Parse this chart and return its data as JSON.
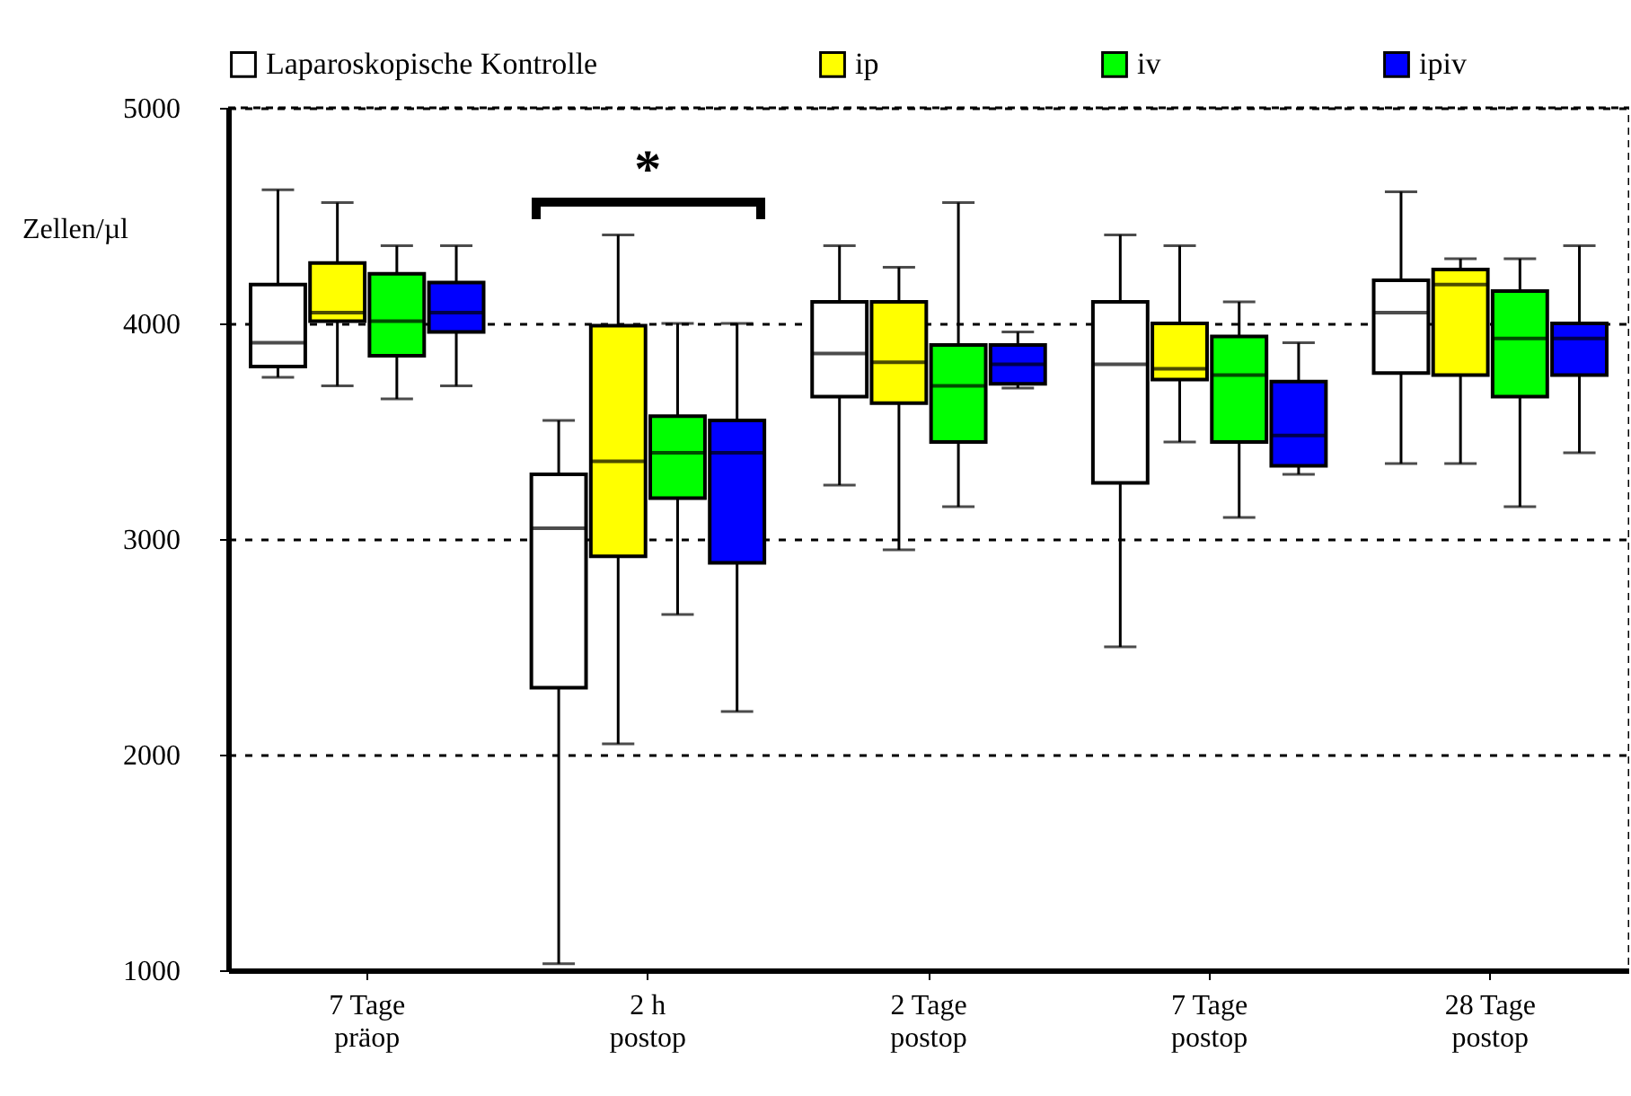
{
  "chart_data": {
    "type": "box",
    "ylabel": "Zellen/µl",
    "categories": [
      "7 Tage\npräop",
      "2 h\npostop",
      "2 Tage\npostop",
      "7 Tage\npostop",
      "28 Tage\npostop"
    ],
    "ylim": [
      1000,
      5000
    ],
    "yticks": [
      1000,
      2000,
      3000,
      4000,
      5000
    ],
    "grid": "y",
    "legend": "top",
    "annotations": [
      "*"
    ],
    "series": [
      {
        "name": "Laparoskopische Kontrolle",
        "color": "#ffffff",
        "boxes": [
          {
            "low": 3750,
            "q1": 3800,
            "median": 3910,
            "q3": 4180,
            "high": 4620
          },
          {
            "low": 1030,
            "q1": 2310,
            "median": 3050,
            "q3": 3300,
            "high": 3550
          },
          {
            "low": 3250,
            "q1": 3660,
            "median": 3860,
            "q3": 4100,
            "high": 4360
          },
          {
            "low": 2500,
            "q1": 3260,
            "median": 3810,
            "q3": 4100,
            "high": 4410
          },
          {
            "low": 3350,
            "q1": 3770,
            "median": 4050,
            "q3": 4200,
            "high": 4610
          }
        ]
      },
      {
        "name": "ip",
        "color": "#ffff00",
        "boxes": [
          {
            "low": 3710,
            "q1": 4010,
            "median": 4050,
            "q3": 4280,
            "high": 4560
          },
          {
            "low": 2050,
            "q1": 2920,
            "median": 3360,
            "q3": 3990,
            "high": 4410
          },
          {
            "low": 2950,
            "q1": 3630,
            "median": 3820,
            "q3": 4100,
            "high": 4260
          },
          {
            "low": 3450,
            "q1": 3740,
            "median": 3790,
            "q3": 4000,
            "high": 4360
          },
          {
            "low": 3350,
            "q1": 3760,
            "median": 4180,
            "q3": 4250,
            "high": 4300
          }
        ]
      },
      {
        "name": "iv",
        "color": "#00ff00",
        "boxes": [
          {
            "low": 3650,
            "q1": 3850,
            "median": 4010,
            "q3": 4230,
            "high": 4360
          },
          {
            "low": 2650,
            "q1": 3190,
            "median": 3400,
            "q3": 3570,
            "high": 4000
          },
          {
            "low": 3150,
            "q1": 3450,
            "median": 3710,
            "q3": 3900,
            "high": 4560
          },
          {
            "low": 3100,
            "q1": 3450,
            "median": 3760,
            "q3": 3940,
            "high": 4100
          },
          {
            "low": 3150,
            "q1": 3660,
            "median": 3930,
            "q3": 4150,
            "high": 4300
          }
        ]
      },
      {
        "name": "ipiv",
        "color": "#0000ff",
        "boxes": [
          {
            "low": 3710,
            "q1": 3960,
            "median": 4050,
            "q3": 4190,
            "high": 4360
          },
          {
            "low": 2200,
            "q1": 2890,
            "median": 3400,
            "q3": 3550,
            "high": 4000
          },
          {
            "low": 3700,
            "q1": 3720,
            "median": 3810,
            "q3": 3900,
            "high": 3960
          },
          {
            "low": 3300,
            "q1": 3340,
            "median": 3480,
            "q3": 3730,
            "high": 3910
          },
          {
            "low": 3400,
            "q1": 3760,
            "median": 3930,
            "q3": 4000,
            "high": 4360
          }
        ]
      }
    ]
  }
}
